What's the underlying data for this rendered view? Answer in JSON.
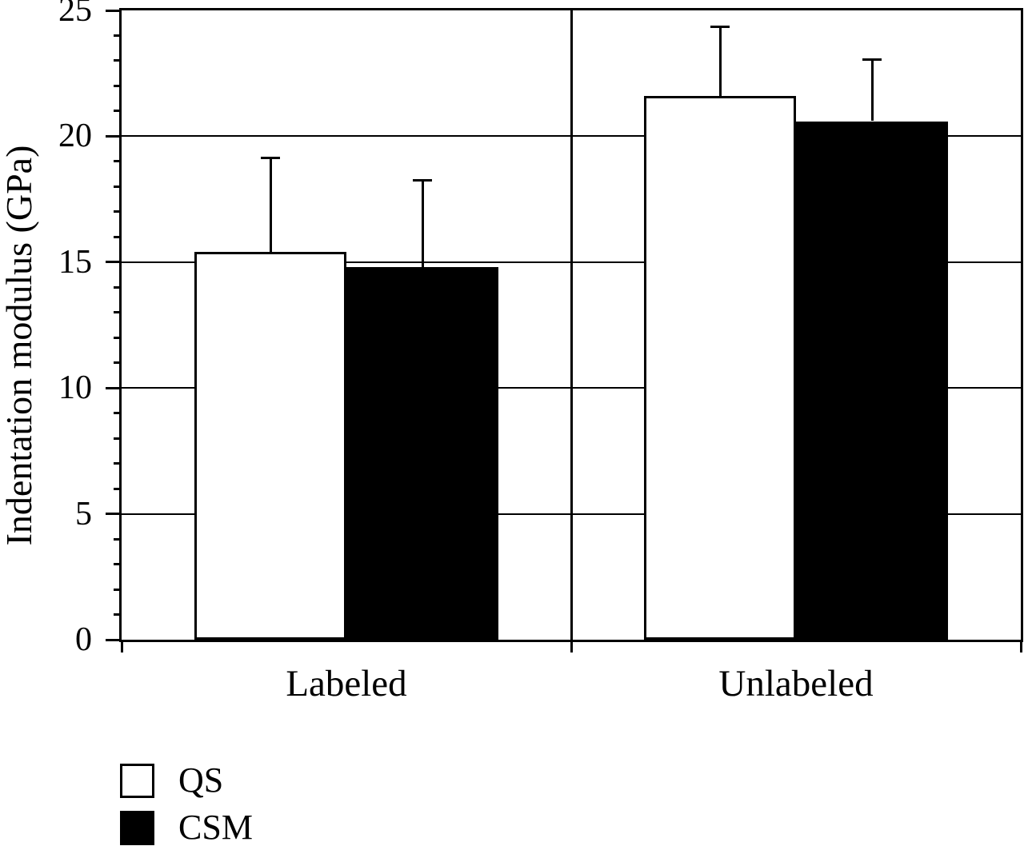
{
  "chart_data": {
    "type": "bar",
    "title": "",
    "ylabel": "Indentation modulus (GPa)",
    "xlabel": "",
    "ylim": [
      0,
      25
    ],
    "yticks_major": [
      0,
      5,
      10,
      15,
      20,
      25
    ],
    "ytick_minor_step": 1,
    "grid": "horizontal gridlines at major ticks",
    "categories": [
      "Labeled",
      "Unlabeled"
    ],
    "series": [
      {
        "name": "QS",
        "fill": "#ffffff",
        "stroke": "#000000",
        "values": [
          15.4,
          21.6
        ],
        "errors_plus": [
          3.8,
          2.8
        ]
      },
      {
        "name": "CSM",
        "fill": "#000000",
        "stroke": "#000000",
        "values": [
          14.8,
          20.6
        ],
        "errors_plus": [
          3.5,
          2.5
        ]
      }
    ],
    "error_bars": "upper only, capped",
    "legend_position": "bottom-left",
    "axis_color": "#000000",
    "background_color": "#ffffff"
  }
}
